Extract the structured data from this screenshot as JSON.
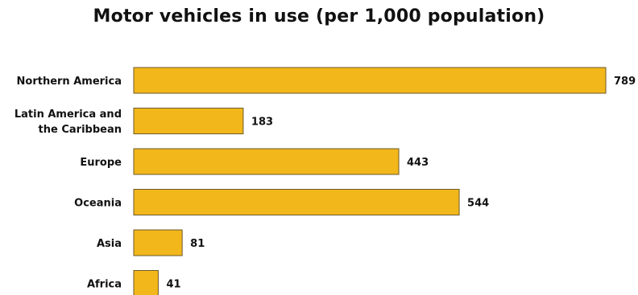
{
  "chart_data": {
    "type": "bar",
    "orientation": "horizontal",
    "title": "Motor vehicles in use (per 1,000 population)",
    "categories": [
      [
        "Northern America"
      ],
      [
        "Latin America and",
        "the Caribbean"
      ],
      [
        "Europe"
      ],
      [
        "Oceania"
      ],
      [
        "Asia"
      ],
      [
        "Africa"
      ]
    ],
    "values": [
      789,
      183,
      443,
      544,
      81,
      41
    ],
    "xlim": [
      0,
      789
    ],
    "grid": false,
    "legend": "none",
    "bar_color": "#F2B71A",
    "bar_edge_color": "#6B5A2A"
  }
}
